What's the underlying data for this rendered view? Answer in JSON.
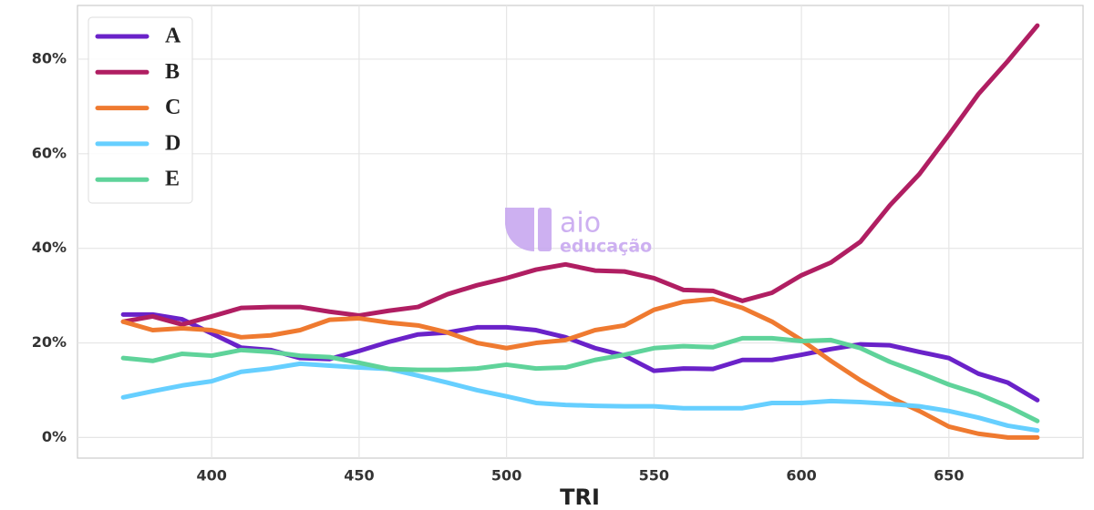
{
  "chart_data": {
    "type": "line",
    "x_label": "TRI",
    "watermark": [
      "aio",
      "educação"
    ],
    "x": [
      370,
      380,
      390,
      400,
      410,
      420,
      430,
      440,
      450,
      460,
      470,
      480,
      490,
      500,
      510,
      520,
      530,
      540,
      550,
      560,
      570,
      580,
      590,
      600,
      610,
      620,
      630,
      640,
      650,
      660,
      670,
      680
    ],
    "series": [
      {
        "name": "A",
        "color": "#6a22c9",
        "values": [
          26,
          26,
          25,
          22,
          19,
          18.5,
          16.8,
          16.6,
          18.3,
          20.2,
          21.8,
          22.2,
          23.3,
          23.3,
          22.7,
          21.2,
          18.9,
          17.3,
          14.1,
          14.6,
          14.5,
          16.4,
          16.4,
          17.5,
          18.7,
          19.7,
          19.5,
          18.1,
          16.8,
          13.5,
          11.6,
          7.9
        ]
      },
      {
        "name": "B",
        "color": "#b01e62",
        "values": [
          24.5,
          25.6,
          23.9,
          25.6,
          27.4,
          27.6,
          27.6,
          26.6,
          25.8,
          26.8,
          27.6,
          30.3,
          32.2,
          33.7,
          35.5,
          36.6,
          35.3,
          35.1,
          33.7,
          31.2,
          31.0,
          28.9,
          30.6,
          34.3,
          37.0,
          41.4,
          49.1,
          55.7,
          64.0,
          72.6,
          79.6,
          87.1
        ]
      },
      {
        "name": "C",
        "color": "#ef7a30",
        "values": [
          24.5,
          22.7,
          23.1,
          22.7,
          21.2,
          21.6,
          22.7,
          24.9,
          25.2,
          24.3,
          23.7,
          22.2,
          20.0,
          18.9,
          20.0,
          20.6,
          22.7,
          23.7,
          27.0,
          28.7,
          29.3,
          27.4,
          24.5,
          20.6,
          16.2,
          12.1,
          8.5,
          5.6,
          2.3,
          0.8,
          0,
          0
        ]
      },
      {
        "name": "D",
        "color": "#66cfff",
        "values": [
          8.5,
          9.8,
          11.0,
          11.9,
          13.9,
          14.6,
          15.6,
          15.2,
          14.8,
          14.5,
          13.1,
          11.6,
          10.0,
          8.7,
          7.3,
          6.9,
          6.7,
          6.6,
          6.6,
          6.2,
          6.2,
          6.2,
          7.3,
          7.3,
          7.7,
          7.5,
          7.1,
          6.6,
          5.6,
          4.2,
          2.5,
          1.5
        ]
      },
      {
        "name": "E",
        "color": "#5fd39a",
        "values": [
          16.8,
          16.2,
          17.7,
          17.3,
          18.5,
          18.1,
          17.3,
          17.0,
          15.8,
          14.5,
          14.3,
          14.3,
          14.6,
          15.4,
          14.6,
          14.8,
          16.4,
          17.5,
          18.9,
          19.3,
          19.1,
          21.0,
          21.0,
          20.4,
          20.6,
          18.9,
          16.0,
          13.7,
          11.2,
          9.2,
          6.6,
          3.5
        ]
      }
    ],
    "xlim": [
      354.5,
      695.5
    ],
    "xticks": [
      400,
      450,
      500,
      550,
      600,
      650
    ],
    "ylim": [
      -4.35,
      91.35
    ],
    "yticks": [
      {
        "value": 0,
        "label": "0%"
      },
      {
        "value": 20,
        "label": "20%"
      },
      {
        "value": 40,
        "label": "40%"
      },
      {
        "value": 60,
        "label": "60%"
      },
      {
        "value": 80,
        "label": "80%"
      }
    ],
    "grid": true,
    "legend": "upper-left"
  }
}
